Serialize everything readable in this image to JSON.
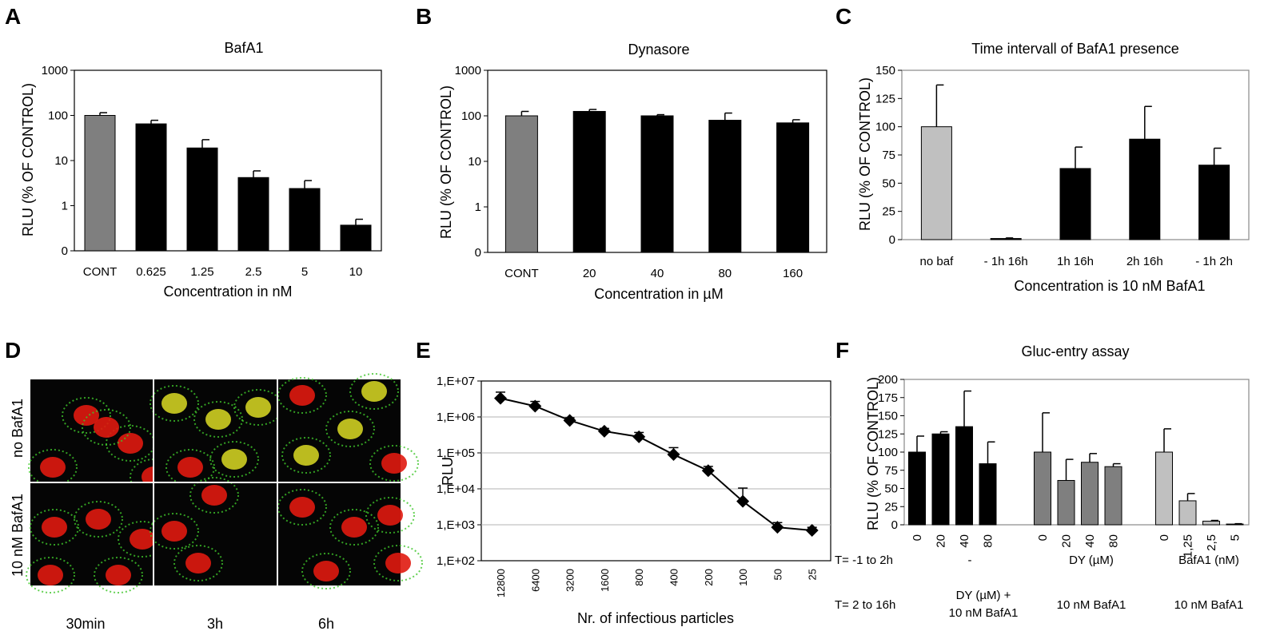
{
  "colors": {
    "black_bar": "#000000",
    "dark_gray_bar": "#7f7f7f",
    "light_gray_bar": "#c0c0c0",
    "grid": "#b3b3b3",
    "micro_red": "#e01a10",
    "micro_green": "#3fc62a",
    "micro_yellow": "#cfcf22"
  },
  "micrograph": {
    "panel_label": "D",
    "row_labels": [
      "no BafA1",
      "10 nM BafA1"
    ],
    "col_labels": [
      "30min",
      "3h",
      "6h"
    ]
  },
  "chart_data": [
    {
      "panel": "A",
      "type": "bar",
      "title": "BafA1",
      "xlabel": "Concentration in nM",
      "ylabel": "RLU (% OF CONTROL)",
      "yscale": "log",
      "ylim": [
        0.1,
        1000
      ],
      "yticks": [
        {
          "v": 0.1,
          "t": "0"
        },
        {
          "v": 1,
          "t": "1"
        },
        {
          "v": 10,
          "t": "10"
        },
        {
          "v": 100,
          "t": "100"
        },
        {
          "v": 1000,
          "t": "1000"
        }
      ],
      "categories": [
        "CONT",
        "0.625",
        "1.25",
        "2.5",
        "5",
        "10"
      ],
      "values": [
        100,
        65,
        19,
        4.2,
        2.4,
        0.37
      ],
      "errors": [
        115,
        78,
        29,
        5.9,
        3.6,
        0.5
      ],
      "bar_colors": [
        "#7f7f7f",
        "#000000",
        "#000000",
        "#000000",
        "#000000",
        "#000000"
      ],
      "grid": false
    },
    {
      "panel": "B",
      "type": "bar",
      "title": "Dynasore",
      "xlabel": "Concentration in µM",
      "ylabel": "RLU (% OF CONTROL)",
      "yscale": "log",
      "ylim": [
        0.1,
        1000
      ],
      "yticks": [
        {
          "v": 0.1,
          "t": "0"
        },
        {
          "v": 1,
          "t": "1"
        },
        {
          "v": 10,
          "t": "10"
        },
        {
          "v": 100,
          "t": "100"
        },
        {
          "v": 1000,
          "t": "1000"
        }
      ],
      "categories": [
        "CONT",
        "20",
        "40",
        "80",
        "160"
      ],
      "values": [
        100,
        125,
        100,
        80,
        70
      ],
      "errors": [
        125,
        138,
        106,
        115,
        82
      ],
      "bar_colors": [
        "#7f7f7f",
        "#000000",
        "#000000",
        "#000000",
        "#000000"
      ],
      "grid": false
    },
    {
      "panel": "C",
      "type": "bar",
      "title": "Time intervall of BafA1 presence",
      "xlabel": "Concentration is 10 nM BafA1",
      "ylabel": "RLU (% OF CONTROL)",
      "yscale": "linear",
      "ylim": [
        0,
        150
      ],
      "yticks": [
        {
          "v": 0,
          "t": "0"
        },
        {
          "v": 25,
          "t": "25"
        },
        {
          "v": 50,
          "t": "50"
        },
        {
          "v": 75,
          "t": "75"
        },
        {
          "v": 100,
          "t": "100"
        },
        {
          "v": 125,
          "t": "125"
        },
        {
          "v": 150,
          "t": "150"
        }
      ],
      "categories": [
        "no baf",
        "- 1h 16h",
        "1h 16h",
        "2h 16h",
        "- 1h 2h"
      ],
      "values": [
        100,
        1,
        63,
        89,
        66
      ],
      "errors": [
        137,
        1.5,
        82,
        118,
        81
      ],
      "bar_colors": [
        "#c0c0c0",
        "#000000",
        "#000000",
        "#000000",
        "#000000"
      ],
      "grid": false
    },
    {
      "panel": "E",
      "type": "line",
      "title": "",
      "xlabel": "Nr. of infectious particles",
      "ylabel": "RLU",
      "yscale": "log",
      "ylim": [
        100,
        10000000
      ],
      "yticks": [
        {
          "v": 100,
          "t": "1,E+02"
        },
        {
          "v": 1000,
          "t": "1,E+03"
        },
        {
          "v": 10000,
          "t": "1,E+04"
        },
        {
          "v": 100000,
          "t": "1,E+05"
        },
        {
          "v": 1000000,
          "t": "1,E+06"
        },
        {
          "v": 10000000,
          "t": "1,E+07"
        }
      ],
      "categories": [
        "12800",
        "6400",
        "3200",
        "1600",
        "800",
        "400",
        "200",
        "100",
        "50",
        "25"
      ],
      "values": [
        3300000,
        2000000,
        800000,
        400000,
        280000,
        90000,
        32000,
        4500,
        850,
        700
      ],
      "errors": [
        4900000,
        2700000,
        950000,
        480000,
        370000,
        140000,
        42000,
        10500,
        1150,
        850
      ],
      "grid": true
    },
    {
      "panel": "F",
      "type": "bar",
      "title": "Gluc-entry assay",
      "xlabel": "",
      "ylabel": "RLU (% OF CONTROL)",
      "yscale": "linear",
      "ylim": [
        0,
        200
      ],
      "yticks": [
        {
          "v": 0,
          "t": "0"
        },
        {
          "v": 25,
          "t": "25"
        },
        {
          "v": 50,
          "t": "50"
        },
        {
          "v": 75,
          "t": "75"
        },
        {
          "v": 100,
          "t": "100"
        },
        {
          "v": 125,
          "t": "125"
        },
        {
          "v": 150,
          "t": "150"
        },
        {
          "v": 175,
          "t": "175"
        },
        {
          "v": 200,
          "t": "200"
        }
      ],
      "categories": [
        "0",
        "20",
        "40",
        "80",
        "0",
        "20",
        "40",
        "80",
        "0",
        "1,25",
        "2,5",
        "5"
      ],
      "values": [
        100,
        125,
        135,
        84,
        100,
        61,
        86,
        80,
        100,
        33,
        5,
        1
      ],
      "errors": [
        122,
        128,
        184,
        114,
        154,
        90,
        98,
        84,
        132,
        43,
        6,
        1.5
      ],
      "bar_colors": [
        "#000000",
        "#000000",
        "#000000",
        "#000000",
        "#7f7f7f",
        "#7f7f7f",
        "#7f7f7f",
        "#7f7f7f",
        "#c0c0c0",
        "#c0c0c0",
        "#c0c0c0",
        "#c0c0c0"
      ],
      "row_headers": [
        "T= -1 to 2h",
        "T= 2 to 16h"
      ],
      "groups": [
        {
          "row1": "-",
          "row2a": "DY (µM) +",
          "row2b": "10 nM BafA1"
        },
        {
          "row1": "DY (µM)",
          "row2a": "10 nM BafA1",
          "row2b": ""
        },
        {
          "row1": "BafA1 (nM)",
          "row2a": "10 nM BafA1",
          "row2b": ""
        }
      ],
      "grid": false
    }
  ]
}
